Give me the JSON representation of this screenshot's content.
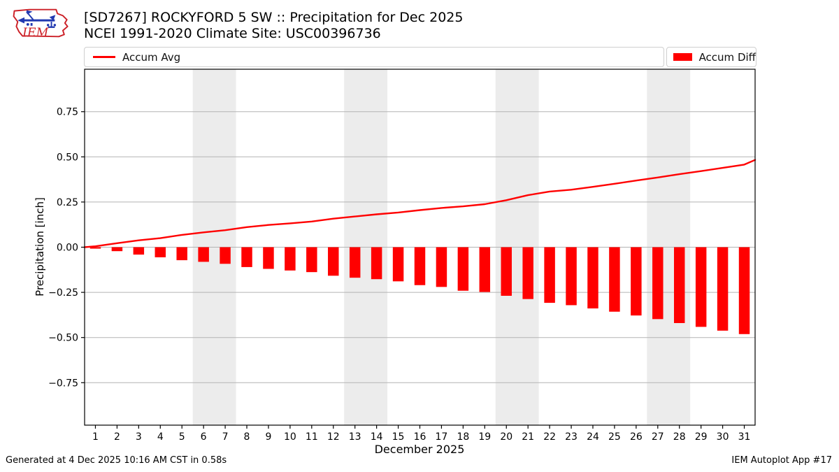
{
  "header": {
    "title_line1": "[SD7267] ROCKYFORD 5 SW :: Precipitation for Dec 2025",
    "title_line2": "NCEI 1991-2020 Climate Site: USC00396736",
    "logo_text": "IEM"
  },
  "legend": {
    "avg_label": "Accum Avg",
    "diff_label": "Accum Diff"
  },
  "footer": {
    "generated": "Generated at 4 Dec 2025 10:16 AM CST in 0.58s",
    "app": "IEM Autoplot App #17"
  },
  "colors": {
    "accent_red": "#ff0000",
    "weekend_band": "#ececec",
    "gridline": "#b3b3b3",
    "plot_border": "#000000",
    "logo_red": "#cc2027",
    "logo_blue": "#2038b0"
  },
  "chart_data": {
    "type": "line+bar",
    "title": "[SD7267] ROCKYFORD 5 SW :: Precipitation for Dec 2025",
    "subtitle": "NCEI 1991-2020 Climate Site: USC00396736",
    "xlabel": "December 2025",
    "ylabel": "Precipitation [inch]",
    "x_days": [
      1,
      2,
      3,
      4,
      5,
      6,
      7,
      8,
      9,
      10,
      11,
      12,
      13,
      14,
      15,
      16,
      17,
      18,
      19,
      20,
      21,
      22,
      23,
      24,
      25,
      26,
      27,
      28,
      29,
      30,
      31
    ],
    "xtick_labels": [
      "1",
      "2",
      "3",
      "4",
      "5",
      "6",
      "7",
      "8",
      "9",
      "10",
      "11",
      "12",
      "13",
      "14",
      "15",
      "16",
      "17",
      "18",
      "19",
      "20",
      "21",
      "22",
      "23",
      "24",
      "25",
      "26",
      "27",
      "28",
      "29",
      "30",
      "31"
    ],
    "series": [
      {
        "name": "Accum Avg",
        "type": "line",
        "values": [
          0.005,
          0.022,
          0.038,
          0.05,
          0.068,
          0.082,
          0.094,
          0.111,
          0.123,
          0.132,
          0.142,
          0.158,
          0.17,
          0.182,
          0.192,
          0.205,
          0.217,
          0.226,
          0.238,
          0.26,
          0.288,
          0.308,
          0.318,
          0.334,
          0.351,
          0.369,
          0.386,
          0.404,
          0.421,
          0.439,
          0.457
        ],
        "start_point": {
          "x": 0.5,
          "value": 0.0
        },
        "end_point": {
          "x": 31.5,
          "value": 0.483
        }
      },
      {
        "name": "Accum Diff",
        "type": "bar",
        "values": [
          -0.008,
          -0.022,
          -0.041,
          -0.056,
          -0.072,
          -0.081,
          -0.092,
          -0.11,
          -0.12,
          -0.129,
          -0.138,
          -0.158,
          -0.169,
          -0.177,
          -0.189,
          -0.21,
          -0.22,
          -0.241,
          -0.248,
          -0.269,
          -0.287,
          -0.308,
          -0.321,
          -0.339,
          -0.357,
          -0.378,
          -0.398,
          -0.42,
          -0.441,
          -0.462,
          -0.481
        ]
      }
    ],
    "ylim": [
      -0.985,
      0.985
    ],
    "xlim": [
      0.5,
      31.5
    ],
    "yticks": [
      0.75,
      0.5,
      0.25,
      0.0,
      -0.25,
      -0.5,
      -0.75
    ],
    "ytick_labels": [
      "0.75",
      "0.50",
      "0.25",
      "0.00",
      "−0.25",
      "−0.50",
      "−0.75"
    ],
    "weekend_bands": [
      [
        5.5,
        7.5
      ],
      [
        12.5,
        14.5
      ],
      [
        19.5,
        21.5
      ],
      [
        26.5,
        28.5
      ]
    ],
    "grid": "horizontal",
    "legend_position": "top row: line legend left, bar legend right"
  }
}
